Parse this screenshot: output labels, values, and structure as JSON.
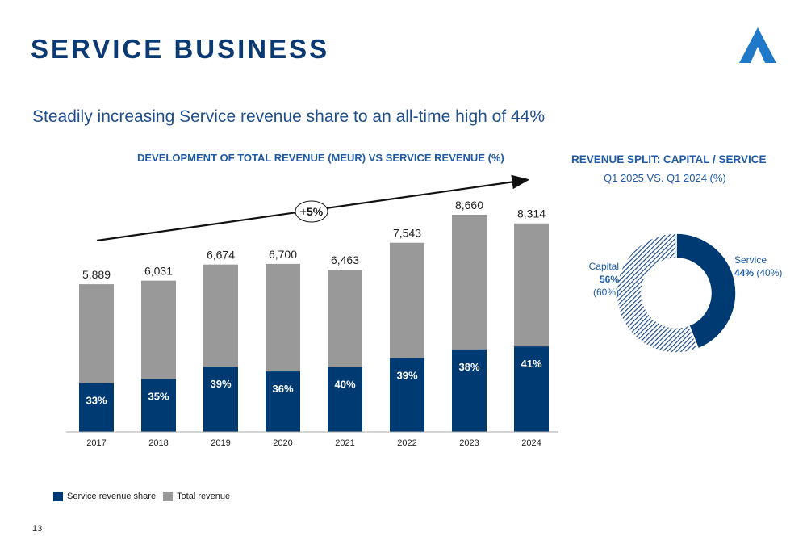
{
  "header": {
    "title": "SERVICE BUSINESS",
    "subtitle": "Steadily increasing Service revenue share to an all-time high of 44%"
  },
  "colors": {
    "primary": "#003a73",
    "total": "#999999",
    "text_blue": "#1f5aa6"
  },
  "left_chart": {
    "title": "DEVELOPMENT OF TOTAL REVENUE (MEUR) VS SERVICE REVENUE (%)",
    "growth_badge": "+5%"
  },
  "right_chart": {
    "title": "REVENUE SPLIT: CAPITAL / SERVICE",
    "subtitle": "Q1 2025 VS. Q1 2024 (%)",
    "capital_label": "Capital",
    "capital_value": "56%",
    "capital_prev": "(60%)",
    "service_label": "Service",
    "service_value": "44%",
    "service_prev": "(40%)"
  },
  "chart_data": [
    {
      "type": "bar",
      "title": "DEVELOPMENT OF TOTAL REVENUE (MEUR) VS SERVICE REVENUE (%)",
      "categories": [
        "2017",
        "2018",
        "2019",
        "2020",
        "2021",
        "2022",
        "2023",
        "2024"
      ],
      "series": [
        {
          "name": "Total revenue",
          "values": [
            5889,
            6031,
            6674,
            6700,
            6463,
            7543,
            8660,
            8314
          ]
        },
        {
          "name": "Service revenue share",
          "values": [
            33,
            35,
            39,
            36,
            40,
            39,
            38,
            41
          ]
        }
      ],
      "value_labels": [
        "5,889",
        "6,031",
        "6,674",
        "6,700",
        "6,463",
        "7,543",
        "8,660",
        "8,314"
      ],
      "share_labels": [
        "33%",
        "35%",
        "39%",
        "36%",
        "40%",
        "39%",
        "38%",
        "41%"
      ],
      "stacked": true,
      "ylim": [
        0,
        8660
      ],
      "legend": "bottom-left",
      "grid": false,
      "annotation": "+5%"
    },
    {
      "type": "pie",
      "title": "REVENUE SPLIT: CAPITAL / SERVICE",
      "categories": [
        "Service",
        "Capital"
      ],
      "values": [
        44,
        56
      ],
      "previous_values": [
        40,
        60
      ]
    }
  ],
  "legend": {
    "service_label": "Service revenue share",
    "total_label": "Total revenue"
  },
  "footer": {
    "page_number": "13"
  }
}
